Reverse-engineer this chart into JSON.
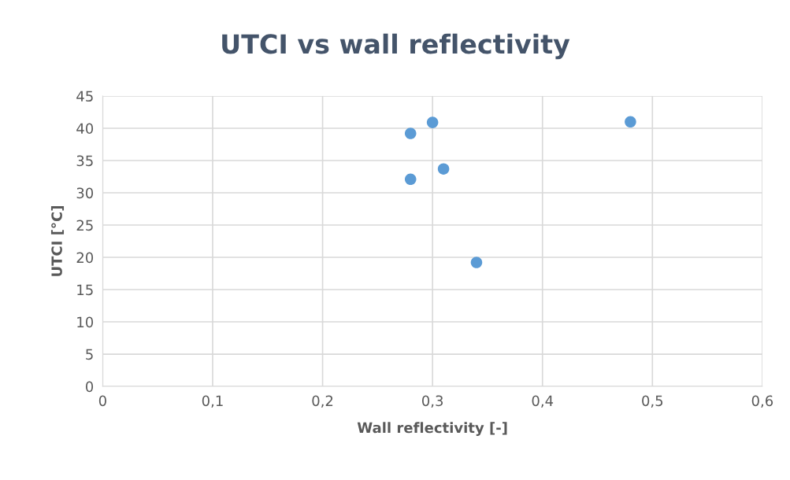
{
  "chart_data": {
    "type": "scatter",
    "title": "UTCI vs wall reflectivity",
    "xlabel": "Wall reflectivity [-]",
    "ylabel": "UTCI [°C]",
    "x": [
      0.28,
      0.3,
      0.48,
      0.31,
      0.28,
      0.34
    ],
    "series": [
      {
        "color": "#5b9bd5",
        "values": [
          39.2,
          40.9,
          41.0,
          33.7,
          32.1,
          19.2
        ]
      }
    ],
    "xlim": [
      0,
      0.6
    ],
    "xticks": [
      0,
      {
        "value": 0.1,
        "label": "0,1"
      },
      {
        "value": 0.2,
        "label": "0,2"
      },
      {
        "value": 0.3,
        "label": "0,3"
      },
      {
        "value": 0.4,
        "label": "0,4"
      },
      {
        "value": 0.5,
        "label": "0,5"
      },
      {
        "value": 0.6,
        "label": "0,6"
      }
    ],
    "ylim": [
      0,
      45
    ],
    "yticks": [
      0,
      5,
      10,
      15,
      20,
      25,
      30,
      35,
      40,
      45
    ],
    "grid": true,
    "marker": "circle",
    "legend": false
  }
}
